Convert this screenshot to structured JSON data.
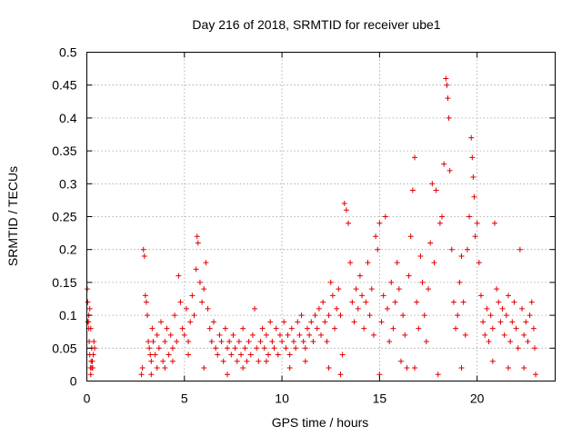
{
  "chart_data": {
    "type": "scatter",
    "title": "Day 216 of 2018, SRMTID for receiver ube1",
    "xlabel": "GPS time / hours",
    "ylabel": "SRMTID / TECUs",
    "xlim": [
      0,
      24
    ],
    "ylim": [
      0,
      0.5
    ],
    "x_ticks": [
      0,
      5,
      10,
      15,
      20
    ],
    "x_tick_labels": [
      "0",
      "5",
      "10",
      "15",
      "20"
    ],
    "y_ticks": [
      0,
      0.05,
      0.1,
      0.15,
      0.2,
      0.25,
      0.3,
      0.35,
      0.4,
      0.45,
      0.5
    ],
    "y_tick_labels": [
      "0",
      "0.05",
      "0.1",
      "0.15",
      "0.2",
      "0.25",
      "0.3",
      "0.35",
      "0.4",
      "0.45",
      "0.5"
    ],
    "grid": true,
    "marker": "+",
    "color": "#e00000",
    "series": [
      {
        "name": "SRMTID",
        "points": [
          [
            0.02,
            0.14
          ],
          [
            0.05,
            0.12
          ],
          [
            0.08,
            0.09
          ],
          [
            0.1,
            0.08
          ],
          [
            0.12,
            0.06
          ],
          [
            0.15,
            0.04
          ],
          [
            0.18,
            0.02
          ],
          [
            0.2,
            0.01
          ],
          [
            0.22,
            0.03
          ],
          [
            0.25,
            0.05
          ],
          [
            0.28,
            0.03
          ],
          [
            0.3,
            0.02
          ],
          [
            0.33,
            0.04
          ],
          [
            0.36,
            0.06
          ],
          [
            0.4,
            0.05
          ],
          [
            0.05,
            0.09
          ],
          [
            0.1,
            0.1
          ],
          [
            0.15,
            0.11
          ],
          [
            0.2,
            0.08
          ],
          [
            0.25,
            0.02
          ],
          [
            2.8,
            0.01
          ],
          [
            2.85,
            0.02
          ],
          [
            2.9,
            0.2
          ],
          [
            2.95,
            0.19
          ],
          [
            3.0,
            0.13
          ],
          [
            3.05,
            0.12
          ],
          [
            3.1,
            0.1
          ],
          [
            3.15,
            0.06
          ],
          [
            3.2,
            0.05
          ],
          [
            3.25,
            0.04
          ],
          [
            3.3,
            0.03
          ],
          [
            3.35,
            0.08
          ],
          [
            3.4,
            0.06
          ],
          [
            3.5,
            0.04
          ],
          [
            3.6,
            0.07
          ],
          [
            3.7,
            0.05
          ],
          [
            3.8,
            0.09
          ],
          [
            3.9,
            0.03
          ],
          [
            4.0,
            0.06
          ],
          [
            4.1,
            0.08
          ],
          [
            4.2,
            0.04
          ],
          [
            4.3,
            0.07
          ],
          [
            4.4,
            0.05
          ],
          [
            4.5,
            0.1
          ],
          [
            4.6,
            0.06
          ],
          [
            4.7,
            0.16
          ],
          [
            4.8,
            0.12
          ],
          [
            4.9,
            0.08
          ],
          [
            5.0,
            0.07
          ],
          [
            5.1,
            0.11
          ],
          [
            5.2,
            0.06
          ],
          [
            5.3,
            0.09
          ],
          [
            5.4,
            0.13
          ],
          [
            5.5,
            0.1
          ],
          [
            5.6,
            0.17
          ],
          [
            5.65,
            0.22
          ],
          [
            5.7,
            0.21
          ],
          [
            5.8,
            0.15
          ],
          [
            5.9,
            0.12
          ],
          [
            6.0,
            0.14
          ],
          [
            6.1,
            0.18
          ],
          [
            6.2,
            0.11
          ],
          [
            6.3,
            0.08
          ],
          [
            6.4,
            0.06
          ],
          [
            6.5,
            0.09
          ],
          [
            6.6,
            0.05
          ],
          [
            6.7,
            0.04
          ],
          [
            6.8,
            0.07
          ],
          [
            6.9,
            0.06
          ],
          [
            7.0,
            0.03
          ],
          [
            7.1,
            0.08
          ],
          [
            7.2,
            0.05
          ],
          [
            7.3,
            0.06
          ],
          [
            7.4,
            0.04
          ],
          [
            7.5,
            0.07
          ],
          [
            7.6,
            0.05
          ],
          [
            7.7,
            0.03
          ],
          [
            7.8,
            0.06
          ],
          [
            7.9,
            0.04
          ],
          [
            8.0,
            0.08
          ],
          [
            8.1,
            0.05
          ],
          [
            8.2,
            0.03
          ],
          [
            8.3,
            0.06
          ],
          [
            8.4,
            0.04
          ],
          [
            8.5,
            0.07
          ],
          [
            8.6,
            0.11
          ],
          [
            8.7,
            0.05
          ],
          [
            8.8,
            0.03
          ],
          [
            8.9,
            0.06
          ],
          [
            9.0,
            0.08
          ],
          [
            9.1,
            0.05
          ],
          [
            9.2,
            0.07
          ],
          [
            9.3,
            0.04
          ],
          [
            9.4,
            0.09
          ],
          [
            9.5,
            0.06
          ],
          [
            9.6,
            0.05
          ],
          [
            9.7,
            0.08
          ],
          [
            9.8,
            0.04
          ],
          [
            9.9,
            0.07
          ],
          [
            10.0,
            0.06
          ],
          [
            10.1,
            0.09
          ],
          [
            10.2,
            0.05
          ],
          [
            10.3,
            0.07
          ],
          [
            10.4,
            0.04
          ],
          [
            10.5,
            0.08
          ],
          [
            10.6,
            0.06
          ],
          [
            10.7,
            0.05
          ],
          [
            10.8,
            0.09
          ],
          [
            10.9,
            0.07
          ],
          [
            11.0,
            0.1
          ],
          [
            11.1,
            0.06
          ],
          [
            11.2,
            0.05
          ],
          [
            11.3,
            0.08
          ],
          [
            11.4,
            0.07
          ],
          [
            11.5,
            0.09
          ],
          [
            11.6,
            0.06
          ],
          [
            11.7,
            0.1
          ],
          [
            11.8,
            0.08
          ],
          [
            11.9,
            0.11
          ],
          [
            12.0,
            0.07
          ],
          [
            12.1,
            0.12
          ],
          [
            12.2,
            0.09
          ],
          [
            12.3,
            0.06
          ],
          [
            12.4,
            0.1
          ],
          [
            12.5,
            0.15
          ],
          [
            12.6,
            0.13
          ],
          [
            12.7,
            0.08
          ],
          [
            12.8,
            0.11
          ],
          [
            12.9,
            0.14
          ],
          [
            13.0,
            0.1
          ],
          [
            13.1,
            0.04
          ],
          [
            13.2,
            0.27
          ],
          [
            13.3,
            0.26
          ],
          [
            13.4,
            0.24
          ],
          [
            13.5,
            0.18
          ],
          [
            13.6,
            0.12
          ],
          [
            13.7,
            0.09
          ],
          [
            13.8,
            0.14
          ],
          [
            13.9,
            0.11
          ],
          [
            14.0,
            0.16
          ],
          [
            14.1,
            0.13
          ],
          [
            14.2,
            0.08
          ],
          [
            14.3,
            0.12
          ],
          [
            14.4,
            0.18
          ],
          [
            14.5,
            0.1
          ],
          [
            14.6,
            0.14
          ],
          [
            14.7,
            0.07
          ],
          [
            14.8,
            0.22
          ],
          [
            14.9,
            0.2
          ],
          [
            15.0,
            0.24
          ],
          [
            15.1,
            0.09
          ],
          [
            15.2,
            0.13
          ],
          [
            15.3,
            0.25
          ],
          [
            15.4,
            0.11
          ],
          [
            15.5,
            0.06
          ],
          [
            15.6,
            0.15
          ],
          [
            15.7,
            0.08
          ],
          [
            15.8,
            0.12
          ],
          [
            15.9,
            0.18
          ],
          [
            16.0,
            0.14
          ],
          [
            16.1,
            0.03
          ],
          [
            16.2,
            0.1
          ],
          [
            16.3,
            0.07
          ],
          [
            16.4,
            0.02
          ],
          [
            16.5,
            0.16
          ],
          [
            16.6,
            0.22
          ],
          [
            16.7,
            0.29
          ],
          [
            16.8,
            0.34
          ],
          [
            16.9,
            0.12
          ],
          [
            17.0,
            0.08
          ],
          [
            17.1,
            0.19
          ],
          [
            17.2,
            0.15
          ],
          [
            17.3,
            0.1
          ],
          [
            17.4,
            0.06
          ],
          [
            17.5,
            0.14
          ],
          [
            17.6,
            0.21
          ],
          [
            17.7,
            0.3
          ],
          [
            17.8,
            0.18
          ],
          [
            17.9,
            0.29
          ],
          [
            18.0,
            0.01
          ],
          [
            18.1,
            0.24
          ],
          [
            18.2,
            0.25
          ],
          [
            18.3,
            0.33
          ],
          [
            18.4,
            0.46
          ],
          [
            18.45,
            0.45
          ],
          [
            18.5,
            0.43
          ],
          [
            18.55,
            0.4
          ],
          [
            18.6,
            0.32
          ],
          [
            18.7,
            0.2
          ],
          [
            18.8,
            0.12
          ],
          [
            18.9,
            0.08
          ],
          [
            19.0,
            0.1
          ],
          [
            19.1,
            0.15
          ],
          [
            19.2,
            0.19
          ],
          [
            19.3,
            0.12
          ],
          [
            19.4,
            0.07
          ],
          [
            19.5,
            0.2
          ],
          [
            19.6,
            0.25
          ],
          [
            19.7,
            0.37
          ],
          [
            19.75,
            0.34
          ],
          [
            19.8,
            0.31
          ],
          [
            19.85,
            0.28
          ],
          [
            19.9,
            0.22
          ],
          [
            20.0,
            0.24
          ],
          [
            20.1,
            0.18
          ],
          [
            20.2,
            0.13
          ],
          [
            20.3,
            0.09
          ],
          [
            20.4,
            0.07
          ],
          [
            20.5,
            0.11
          ],
          [
            20.6,
            0.06
          ],
          [
            20.7,
            0.1
          ],
          [
            20.8,
            0.08
          ],
          [
            20.9,
            0.24
          ],
          [
            21.0,
            0.14
          ],
          [
            21.1,
            0.12
          ],
          [
            21.2,
            0.09
          ],
          [
            21.3,
            0.11
          ],
          [
            21.4,
            0.07
          ],
          [
            21.5,
            0.1
          ],
          [
            21.6,
            0.13
          ],
          [
            21.7,
            0.06
          ],
          [
            21.8,
            0.09
          ],
          [
            21.9,
            0.12
          ],
          [
            22.0,
            0.08
          ],
          [
            22.1,
            0.05
          ],
          [
            22.2,
            0.2
          ],
          [
            22.3,
            0.11
          ],
          [
            22.4,
            0.07
          ],
          [
            22.5,
            0.09
          ],
          [
            22.6,
            0.06
          ],
          [
            22.7,
            0.1
          ],
          [
            22.8,
            0.12
          ],
          [
            22.9,
            0.08
          ],
          [
            22.95,
            0.05
          ],
          [
            3.3,
            0.01
          ],
          [
            3.6,
            0.02
          ],
          [
            4.0,
            0.02
          ],
          [
            4.4,
            0.03
          ],
          [
            5.2,
            0.04
          ],
          [
            6.0,
            0.02
          ],
          [
            7.2,
            0.01
          ],
          [
            8.0,
            0.02
          ],
          [
            9.2,
            0.03
          ],
          [
            10.4,
            0.02
          ],
          [
            11.2,
            0.03
          ],
          [
            12.4,
            0.02
          ],
          [
            13.0,
            0.01
          ],
          [
            15.0,
            0.01
          ],
          [
            16.8,
            0.02
          ],
          [
            19.2,
            0.02
          ],
          [
            20.8,
            0.03
          ],
          [
            21.6,
            0.02
          ],
          [
            22.4,
            0.02
          ],
          [
            23.0,
            0.01
          ]
        ]
      }
    ]
  }
}
